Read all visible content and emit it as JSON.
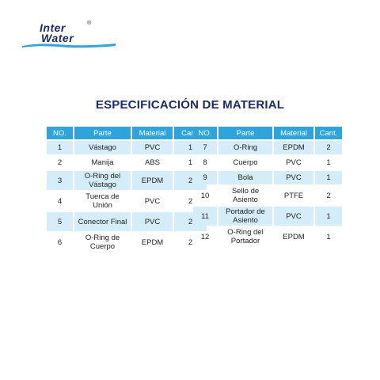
{
  "logo": {
    "line1": "Inter",
    "line2": "Water",
    "reg": "®"
  },
  "title": "ESPECIFICACIÓN DE MATERIAL",
  "headers": [
    "NO.",
    "Parte",
    "Material",
    "Cant."
  ],
  "left_rows": [
    {
      "no": "1",
      "parte": "Vástago",
      "material": "PVC",
      "cant": "1"
    },
    {
      "no": "2",
      "parte": "Manija",
      "material": "ABS",
      "cant": "1"
    },
    {
      "no": "3",
      "parte": "O-Ring del Vástago",
      "material": "EPDM",
      "cant": "2"
    },
    {
      "no": "4",
      "parte": "Tuerca de Unión",
      "material": "PVC",
      "cant": "2"
    },
    {
      "no": "5",
      "parte": "Conector Final",
      "material": "PVC",
      "cant": "2"
    },
    {
      "no": "6",
      "parte": "O-Ring de Cuerpo",
      "material": "EPDM",
      "cant": "2"
    }
  ],
  "right_rows": [
    {
      "no": "7",
      "parte": "O-Ring",
      "material": "EPDM",
      "cant": "2"
    },
    {
      "no": "8",
      "parte": "Cuerpo",
      "material": "PVC",
      "cant": "1"
    },
    {
      "no": "9",
      "parte": "Bola",
      "material": "PVC",
      "cant": "1"
    },
    {
      "no": "10",
      "parte": "Sello de Asiento",
      "material": "PTFE",
      "cant": "2"
    },
    {
      "no": "11",
      "parte": "Portador de Asiento",
      "material": "PVC",
      "cant": "1"
    },
    {
      "no": "12",
      "parte": "O-Ring del Portador",
      "material": "EPDM",
      "cant": "1"
    }
  ],
  "colors": {
    "header": "#2ea3dc",
    "shade": "#d4edf8",
    "title": "#1a2a6c"
  }
}
